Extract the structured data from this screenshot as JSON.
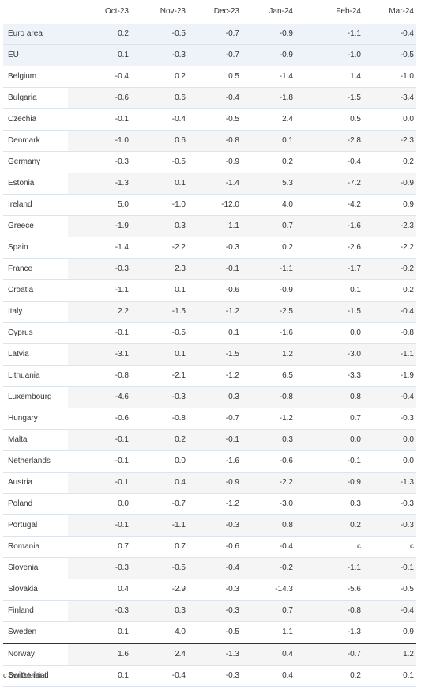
{
  "table": {
    "corner": "",
    "columns": [
      "Oct-23",
      "Nov-23",
      "Dec-23",
      "Jan-24",
      "Feb-24",
      "Mar-24"
    ],
    "rows": [
      {
        "country": "Euro area",
        "values": [
          "0.2",
          "-0.5",
          "-0.7",
          "-0.9",
          "-1.1",
          "-0.4"
        ]
      },
      {
        "country": "EU",
        "values": [
          "0.1",
          "-0.3",
          "-0.7",
          "-0.9",
          "-1.0",
          "-0.5"
        ]
      },
      {
        "country": "Belgium",
        "values": [
          "-0.4",
          "0.2",
          "0.5",
          "-1.4",
          "1.4",
          "-1.0"
        ]
      },
      {
        "country": "Bulgaria",
        "values": [
          "-0.6",
          "0.6",
          "-0.4",
          "-1.8",
          "-1.5",
          "-3.4"
        ]
      },
      {
        "country": "Czechia",
        "values": [
          "-0.1",
          "-0.4",
          "-0.5",
          "2.4",
          "0.5",
          "0.0"
        ]
      },
      {
        "country": "Denmark",
        "values": [
          "-1.0",
          "0.6",
          "-0.8",
          "0.1",
          "-2.8",
          "-2.3"
        ]
      },
      {
        "country": "Germany",
        "values": [
          "-0.3",
          "-0.5",
          "-0.9",
          "0.2",
          "-0.4",
          "0.2"
        ]
      },
      {
        "country": "Estonia",
        "values": [
          "-1.3",
          "0.1",
          "-1.4",
          "5.3",
          "-7.2",
          "-0.9"
        ]
      },
      {
        "country": "Ireland",
        "values": [
          "5.0",
          "-1.0",
          "-12.0",
          "4.0",
          "-4.2",
          "0.9"
        ]
      },
      {
        "country": "Greece",
        "values": [
          "-1.9",
          "0.3",
          "1.1",
          "0.7",
          "-1.6",
          "-2.3"
        ]
      },
      {
        "country": "Spain",
        "values": [
          "-1.4",
          "-2.2",
          "-0.3",
          "0.2",
          "-2.6",
          "-2.2"
        ]
      },
      {
        "country": "France",
        "values": [
          "-0.3",
          "2.3",
          "-0.1",
          "-1.1",
          "-1.7",
          "-0.2"
        ]
      },
      {
        "country": "Croatia",
        "values": [
          "-1.1",
          "0.1",
          "-0.6",
          "-0.9",
          "0.1",
          "0.2"
        ]
      },
      {
        "country": "Italy",
        "values": [
          "2.2",
          "-1.5",
          "-1.2",
          "-2.5",
          "-1.5",
          "-0.4"
        ]
      },
      {
        "country": "Cyprus",
        "values": [
          "-0.1",
          "-0.5",
          "0.1",
          "-1.6",
          "0.0",
          "-0.8"
        ]
      },
      {
        "country": "Latvia",
        "values": [
          "-3.1",
          "0.1",
          "-1.5",
          "1.2",
          "-3.0",
          "-1.1"
        ]
      },
      {
        "country": "Lithuania",
        "values": [
          "-0.8",
          "-2.1",
          "-1.2",
          "6.5",
          "-3.3",
          "-1.9"
        ]
      },
      {
        "country": "Luxembourg",
        "values": [
          "-4.6",
          "-0.3",
          "0.3",
          "-0.8",
          "0.8",
          "-0.4"
        ]
      },
      {
        "country": "Hungary",
        "values": [
          "-0.6",
          "-0.8",
          "-0.7",
          "-1.2",
          "0.7",
          "-0.3"
        ]
      },
      {
        "country": "Malta",
        "values": [
          "-0.1",
          "0.2",
          "-0.1",
          "0.3",
          "0.0",
          "0.0"
        ]
      },
      {
        "country": "Netherlands",
        "values": [
          "-0.1",
          "0.0",
          "-1.6",
          "-0.6",
          "-0.1",
          "0.0"
        ]
      },
      {
        "country": "Austria",
        "values": [
          "-0.1",
          "0.4",
          "-0.9",
          "-2.2",
          "-0.9",
          "-1.3"
        ]
      },
      {
        "country": "Poland",
        "values": [
          "0.0",
          "-0.7",
          "-1.2",
          "-3.0",
          "0.3",
          "-0.3"
        ]
      },
      {
        "country": "Portugal",
        "values": [
          "-0.1",
          "-1.1",
          "-0.3",
          "0.8",
          "0.2",
          "-0.3"
        ]
      },
      {
        "country": "Romania",
        "values": [
          "0.7",
          "0.7",
          "-0.6",
          "-0.4",
          "c",
          "c"
        ]
      },
      {
        "country": "Slovenia",
        "values": [
          "-0.3",
          "-0.5",
          "-0.4",
          "-0.2",
          "-1.1",
          "-0.1"
        ]
      },
      {
        "country": "Slovakia",
        "values": [
          "0.4",
          "-2.9",
          "-0.3",
          "-14.3",
          "-5.6",
          "-0.5"
        ]
      },
      {
        "country": "Finland",
        "values": [
          "-0.3",
          "0.3",
          "-0.3",
          "0.7",
          "-0.8",
          "-0.4"
        ]
      },
      {
        "country": "Sweden",
        "values": [
          "0.1",
          "4.0",
          "-0.5",
          "1.1",
          "-1.3",
          "0.9"
        ]
      },
      {
        "country": "Norway",
        "values": [
          "1.6",
          "2.4",
          "-1.3",
          "0.4",
          "-0.7",
          "1.2"
        ]
      },
      {
        "country": "Switzerland",
        "values": [
          "0.1",
          "-0.4",
          "-0.3",
          "0.4",
          "0.2",
          "0.1"
        ]
      }
    ]
  },
  "footnote": "c Confidential",
  "colors": {
    "aggregate_row_bg": "#eef3fa",
    "shaded_row_bg": "#f5f5f5",
    "row_divider": "#dde3ea",
    "efta_separator": "#333333"
  }
}
